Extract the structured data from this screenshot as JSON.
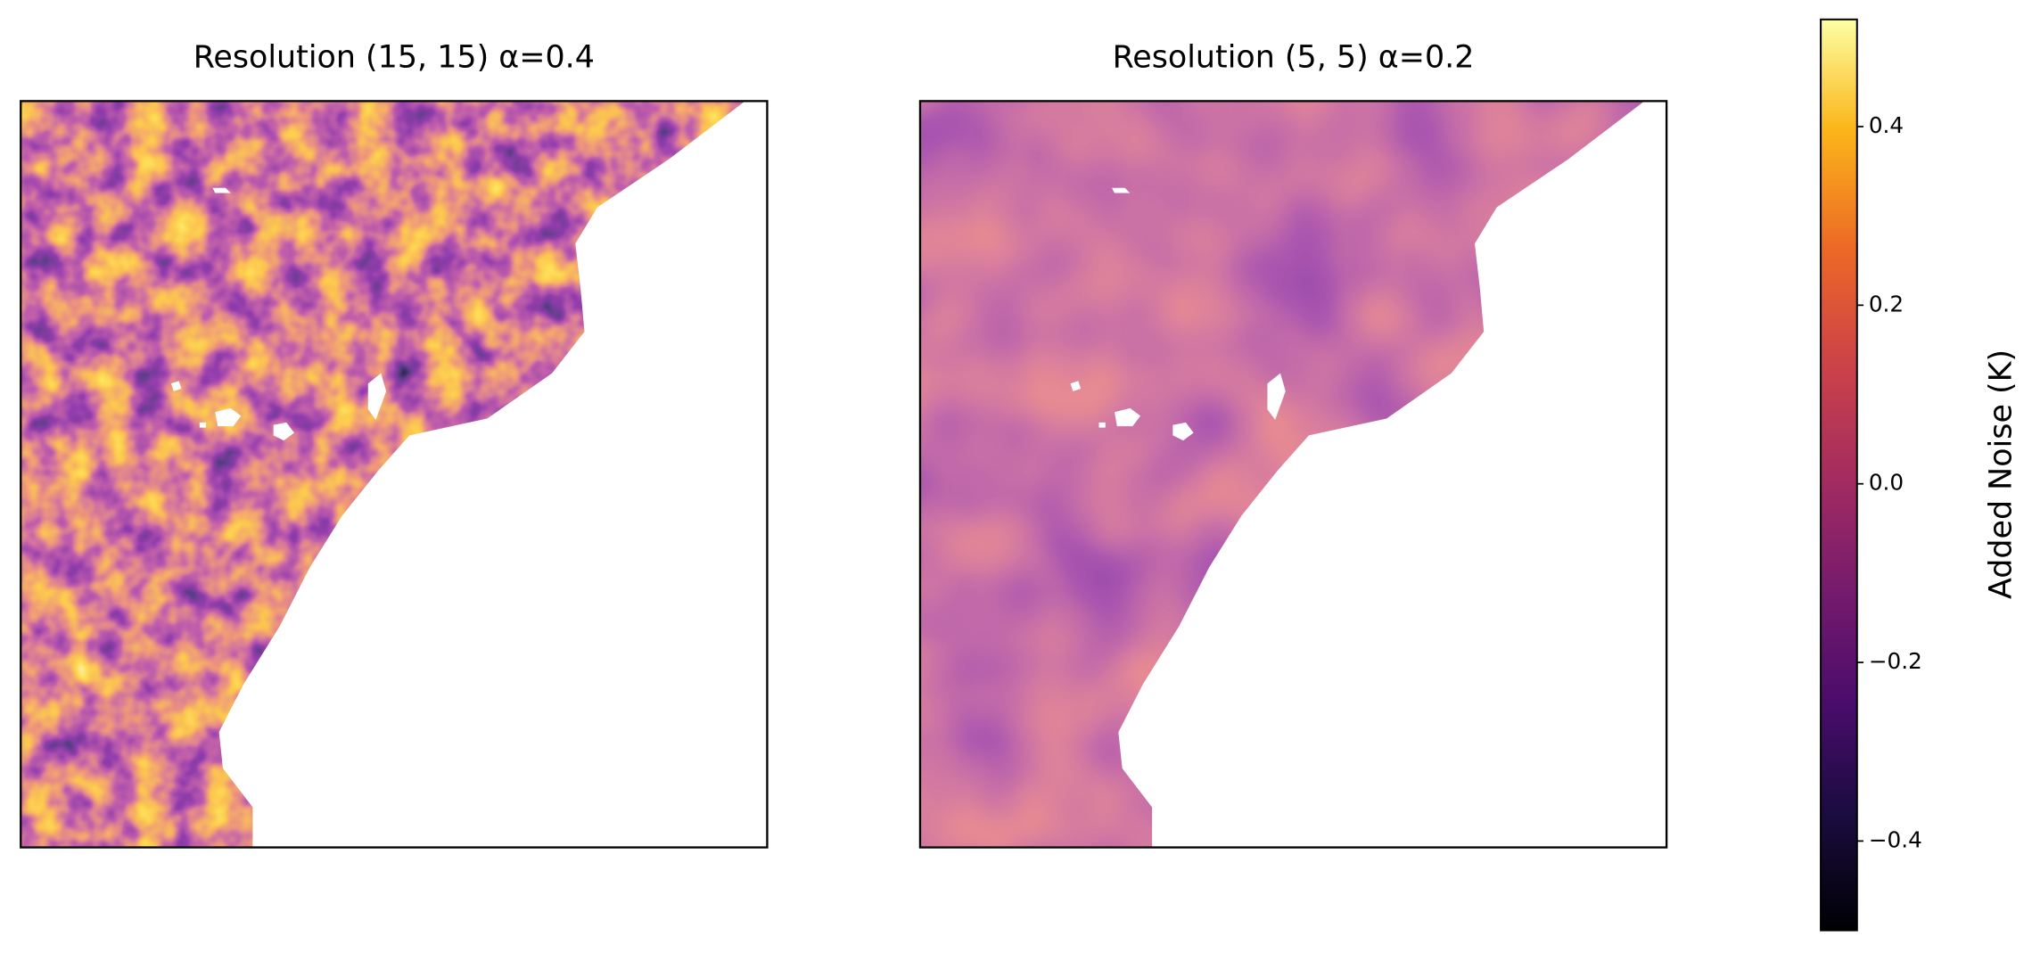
{
  "chart_data": {
    "type": "heatmap",
    "panels": [
      {
        "title": "Resolution (15, 15) α=0.4"
      },
      {
        "title": "Resolution (5, 5) α=0.2"
      }
    ],
    "colorbar": {
      "label": "Added Noise (K)",
      "colormap": "inferno",
      "lim": [
        -0.5,
        0.52
      ],
      "ticks": [
        0.4,
        0.2,
        {
          "value": 0,
          "label": "0.0"
        },
        {
          "value": -0.2,
          "label": "−0.2"
        },
        {
          "value": -0.4,
          "label": "−0.4"
        }
      ]
    }
  }
}
